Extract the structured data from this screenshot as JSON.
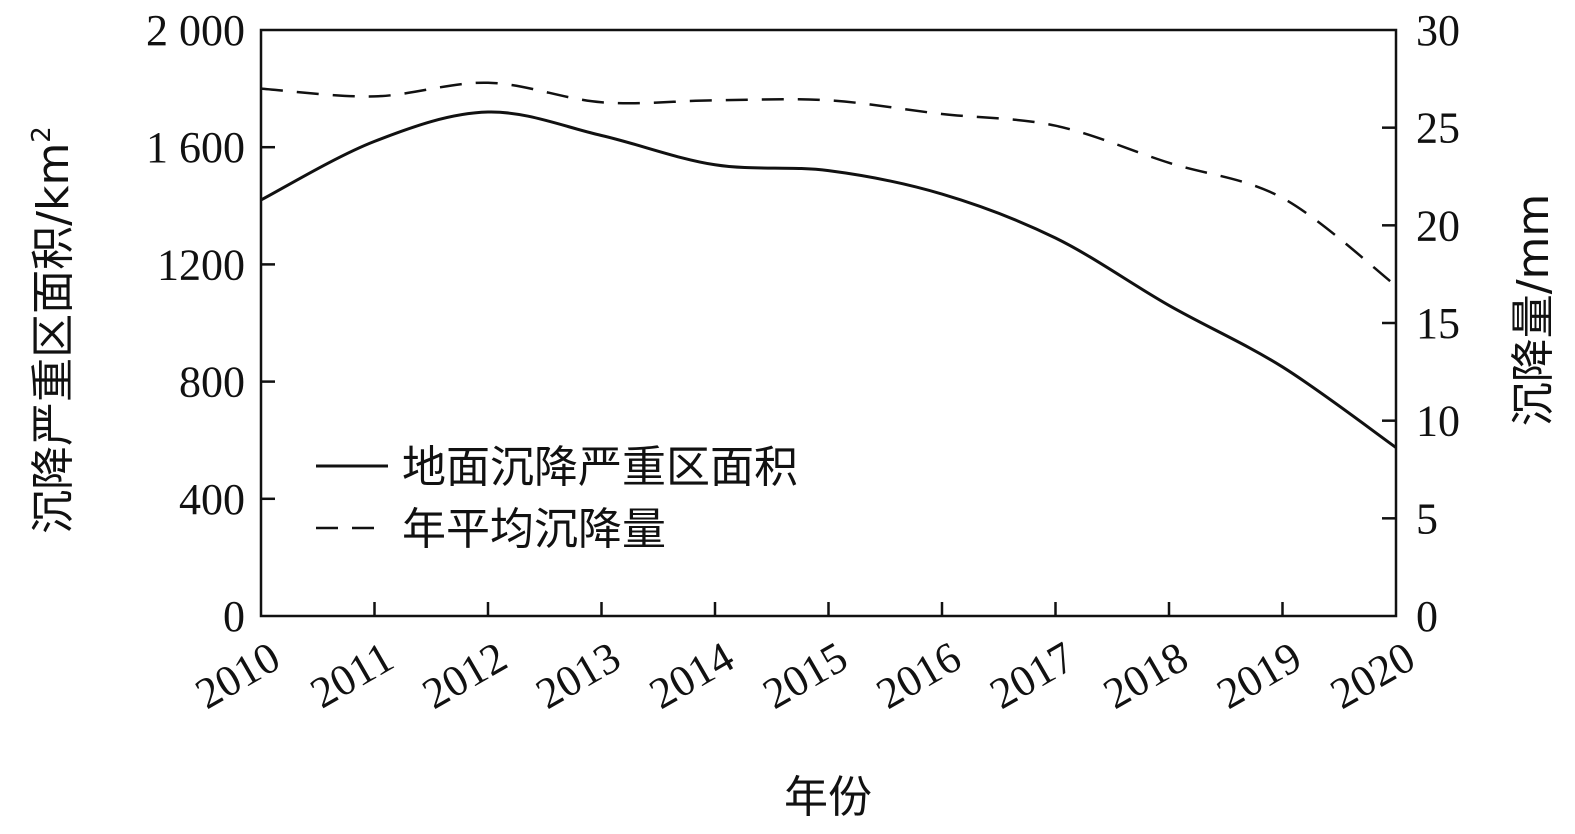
{
  "chart_data": {
    "type": "line",
    "title": "",
    "xlabel": "年份",
    "ylabel_left": "沉降严重区面积/km",
    "ylabel_left_sup": "2",
    "ylabel_right": "沉降量/mm",
    "x": [
      "2010",
      "2011",
      "2012",
      "2013",
      "2014",
      "2015",
      "2016",
      "2017",
      "2018",
      "2019",
      "2020"
    ],
    "xlim": [
      2010,
      2020
    ],
    "y_left_lim": [
      0,
      2000
    ],
    "y_right_lim": [
      0,
      30
    ],
    "y_left_ticks": [
      0,
      400,
      800,
      1200,
      1600,
      2000
    ],
    "y_left_tick_labels": [
      "0",
      "400",
      "800",
      "1200",
      "1 600",
      "2 000"
    ],
    "y_right_ticks": [
      0,
      5,
      10,
      15,
      20,
      25,
      30
    ],
    "y_right_tick_labels": [
      "0",
      "5",
      "10",
      "15",
      "20",
      "25",
      "30"
    ],
    "grid": false,
    "legend_position": "lower-left",
    "series": [
      {
        "name": "地面沉降严重区面积",
        "axis": "left",
        "style": "solid",
        "values": [
          1420,
          1620,
          1720,
          1640,
          1540,
          1520,
          1440,
          1290,
          1060,
          850,
          575
        ]
      },
      {
        "name": "年平均沉降量",
        "axis": "right",
        "style": "dashed",
        "values": [
          27.0,
          26.6,
          27.3,
          26.3,
          26.4,
          26.4,
          25.7,
          25.1,
          23.2,
          21.4,
          16.9
        ]
      }
    ]
  }
}
